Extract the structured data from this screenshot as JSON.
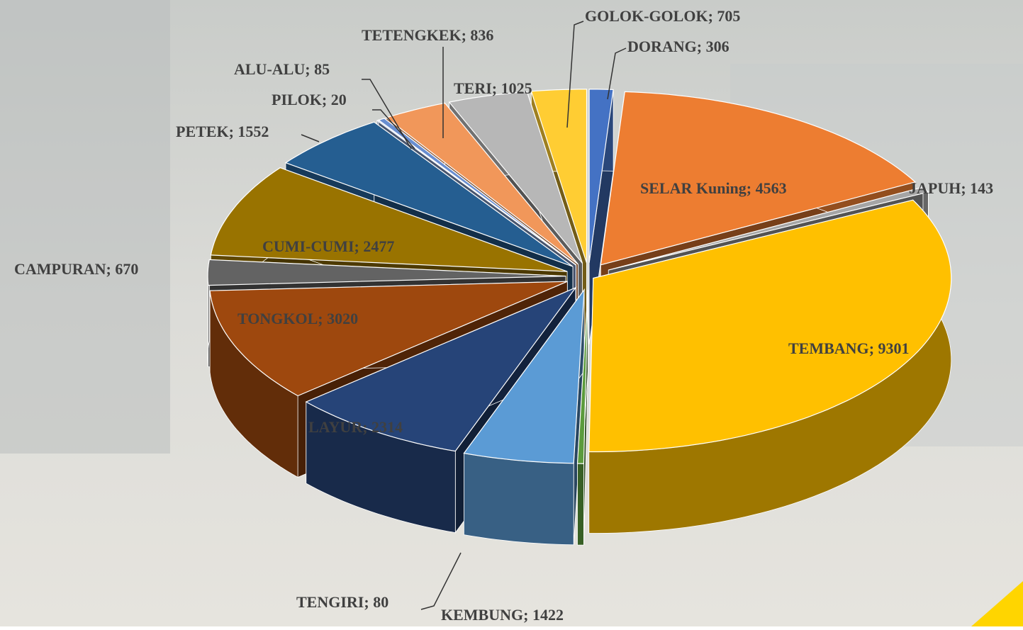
{
  "chart_data": {
    "type": "pie3d",
    "label_separator": "; ",
    "categories": [
      "DORANG",
      "SELAR Kuning",
      "JAPUH",
      "TEMBANG",
      "TENGIRI",
      "KEMBUNG",
      "LAYUR",
      "TONGKOL",
      "CAMPURAN",
      "CUMI-CUMI",
      "PETEK",
      "PILOK",
      "ALU-ALU",
      "TETENGKEK",
      "TERI",
      "GOLOK-GOLOK"
    ],
    "values": [
      306,
      4563,
      143,
      9301,
      80,
      1422,
      2314,
      3020,
      670,
      2477,
      1552,
      20,
      85,
      836,
      1025,
      705
    ],
    "colors": [
      "#4472c4",
      "#ed7d31",
      "#a5a5a5",
      "#ffc000",
      "#5b9b3c",
      "#5b9bd5",
      "#264478",
      "#9e480e",
      "#636363",
      "#997300",
      "#255e91",
      "#8faadc",
      "#698ed0",
      "#f1975a",
      "#b7b7b7",
      "#ffcd33"
    ]
  }
}
